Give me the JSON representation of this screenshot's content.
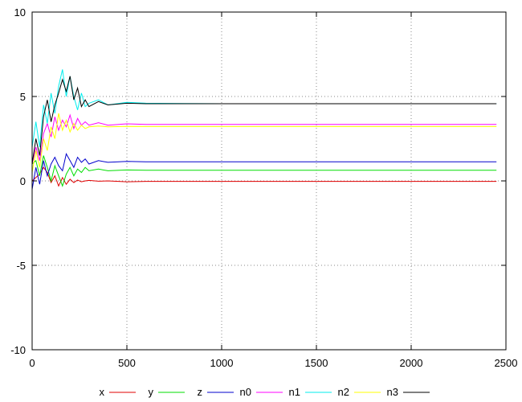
{
  "chart_data": {
    "type": "line",
    "title": "",
    "xlabel": "",
    "ylabel": "",
    "xlim": [
      0,
      2500
    ],
    "ylim": [
      -10,
      10
    ],
    "xticks": [
      0,
      500,
      1000,
      1500,
      2000,
      2500
    ],
    "yticks": [
      -10,
      -5,
      0,
      5,
      10
    ],
    "xtick_labels": [
      "0",
      "500",
      "1000",
      "1500",
      "2000",
      "2500"
    ],
    "ytick_labels": [
      "-10",
      "-5",
      "0",
      "5",
      "10"
    ],
    "grid": true,
    "legend_position": "bottom",
    "series": [
      {
        "name": "x",
        "color": "#e00000",
        "x": [
          0,
          20,
          40,
          60,
          80,
          100,
          120,
          140,
          160,
          180,
          200,
          220,
          240,
          260,
          280,
          300,
          350,
          400,
          500,
          600,
          800,
          1000,
          1500,
          2000,
          2450
        ],
        "y": [
          0.0,
          0.2,
          0.4,
          0.8,
          0.5,
          -0.1,
          0.3,
          -0.3,
          0.2,
          -0.2,
          0.1,
          -0.1,
          0.05,
          -0.05,
          0.0,
          0.03,
          -0.02,
          0.0,
          -0.05,
          -0.03,
          -0.03,
          -0.03,
          -0.03,
          -0.03,
          -0.03
        ]
      },
      {
        "name": "y",
        "color": "#00dd00",
        "x": [
          0,
          20,
          40,
          60,
          80,
          100,
          120,
          140,
          160,
          180,
          200,
          220,
          240,
          260,
          280,
          300,
          350,
          400,
          500,
          600,
          800,
          1000,
          1500,
          2000,
          2450
        ],
        "y": [
          1.0,
          1.2,
          0.3,
          1.5,
          0.8,
          0.0,
          0.9,
          0.3,
          -0.3,
          0.4,
          0.8,
          0.3,
          0.7,
          0.5,
          0.8,
          0.6,
          0.7,
          0.6,
          0.65,
          0.63,
          0.63,
          0.63,
          0.63,
          0.63,
          0.63
        ]
      },
      {
        "name": "z",
        "color": "#0000cc",
        "x": [
          0,
          20,
          40,
          60,
          80,
          100,
          120,
          140,
          160,
          180,
          200,
          220,
          240,
          260,
          280,
          300,
          350,
          400,
          500,
          600,
          800,
          1000,
          1500,
          2000,
          2450
        ],
        "y": [
          -0.5,
          0.8,
          -0.2,
          1.2,
          0.3,
          1.0,
          1.4,
          0.9,
          0.6,
          1.6,
          1.2,
          0.8,
          1.4,
          1.1,
          1.3,
          1.0,
          1.2,
          1.1,
          1.15,
          1.13,
          1.13,
          1.13,
          1.13,
          1.13,
          1.13
        ]
      },
      {
        "name": "n0",
        "color": "#ff00ff",
        "x": [
          0,
          20,
          40,
          60,
          80,
          100,
          120,
          140,
          160,
          180,
          200,
          220,
          240,
          260,
          280,
          300,
          350,
          400,
          500,
          600,
          800,
          1000,
          1500,
          2000,
          2450
        ],
        "y": [
          1.0,
          2.0,
          1.2,
          2.8,
          3.4,
          2.6,
          3.8,
          3.0,
          3.6,
          3.2,
          3.9,
          3.1,
          3.7,
          3.3,
          3.5,
          3.3,
          3.45,
          3.3,
          3.38,
          3.35,
          3.35,
          3.35,
          3.35,
          3.35,
          3.35
        ]
      },
      {
        "name": "n1",
        "color": "#00eeee",
        "x": [
          0,
          20,
          40,
          60,
          80,
          100,
          120,
          140,
          160,
          180,
          200,
          220,
          240,
          260,
          280,
          300,
          350,
          400,
          500,
          600,
          800,
          1000,
          1500,
          2000,
          2450
        ],
        "y": [
          2.0,
          3.5,
          2.0,
          4.5,
          3.4,
          5.2,
          4.0,
          5.6,
          6.6,
          5.0,
          6.2,
          5.0,
          4.2,
          5.2,
          4.4,
          4.6,
          4.8,
          4.5,
          4.65,
          4.6,
          4.58,
          4.57,
          4.57,
          4.57,
          4.57
        ]
      },
      {
        "name": "n2",
        "color": "#ffff00",
        "x": [
          0,
          20,
          40,
          60,
          80,
          100,
          120,
          140,
          160,
          180,
          200,
          220,
          240,
          260,
          280,
          300,
          350,
          400,
          500,
          600,
          800,
          1000,
          1500,
          2000,
          2450
        ],
        "y": [
          0.5,
          1.8,
          0.8,
          2.5,
          1.8,
          3.2,
          2.5,
          4.0,
          3.0,
          3.6,
          2.9,
          3.4,
          3.0,
          3.3,
          3.1,
          3.2,
          3.25,
          3.2,
          3.23,
          3.22,
          3.22,
          3.22,
          3.22,
          3.22,
          3.22
        ]
      },
      {
        "name": "n3",
        "color": "#000000",
        "x": [
          0,
          20,
          40,
          60,
          80,
          100,
          120,
          140,
          160,
          180,
          200,
          220,
          240,
          260,
          280,
          300,
          350,
          400,
          500,
          600,
          800,
          1000,
          1500,
          2000,
          2450
        ],
        "y": [
          1.0,
          2.5,
          1.5,
          3.8,
          4.8,
          3.5,
          4.5,
          5.2,
          6.0,
          5.3,
          6.2,
          4.8,
          5.5,
          4.4,
          4.8,
          4.4,
          4.7,
          4.5,
          4.6,
          4.57,
          4.57,
          4.57,
          4.57,
          4.57,
          4.57
        ]
      }
    ]
  }
}
